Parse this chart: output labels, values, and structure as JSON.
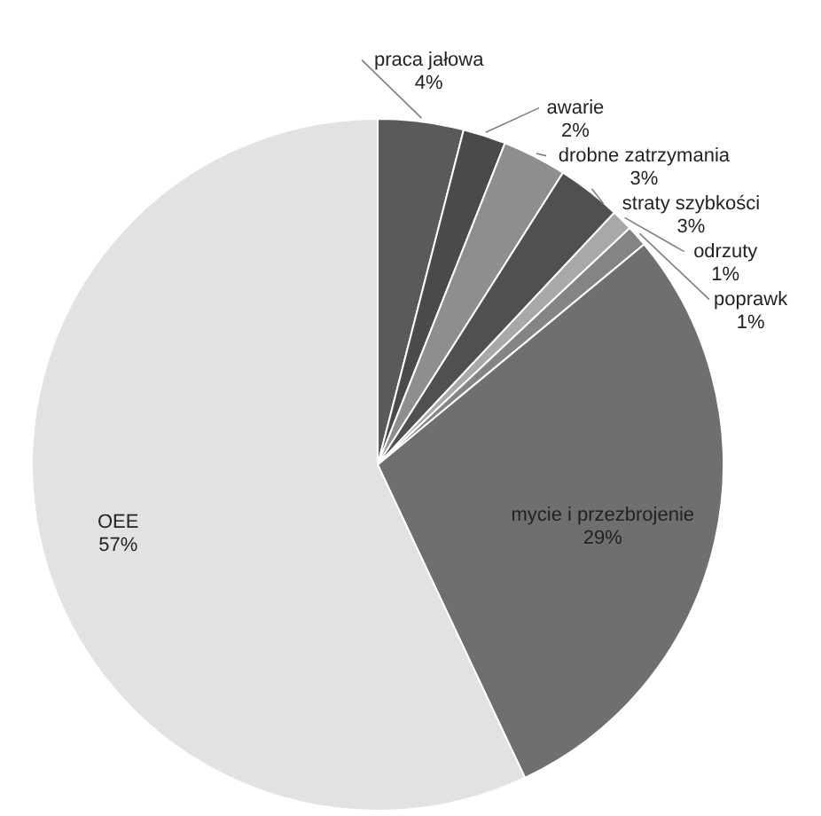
{
  "chart_data": {
    "type": "pie",
    "categories": [
      "praca jałowa",
      "awarie",
      "drobne zatrzymania",
      "straty szybkości",
      "odrzuty",
      "poprawk",
      "mycie i przezbrojenie",
      "OEE"
    ],
    "values": [
      4,
      2,
      3,
      3,
      1,
      1,
      29,
      57
    ],
    "value_labels": [
      "4%",
      "2%",
      "3%",
      "3%",
      "1%",
      "1%",
      "29%",
      "57%"
    ],
    "colors": [
      "#5a5a5a",
      "#4a4a4a",
      "#8e8e8e",
      "#505050",
      "#a8a8a8",
      "#848484",
      "#6f6f6f",
      "#e2e2e2"
    ]
  }
}
